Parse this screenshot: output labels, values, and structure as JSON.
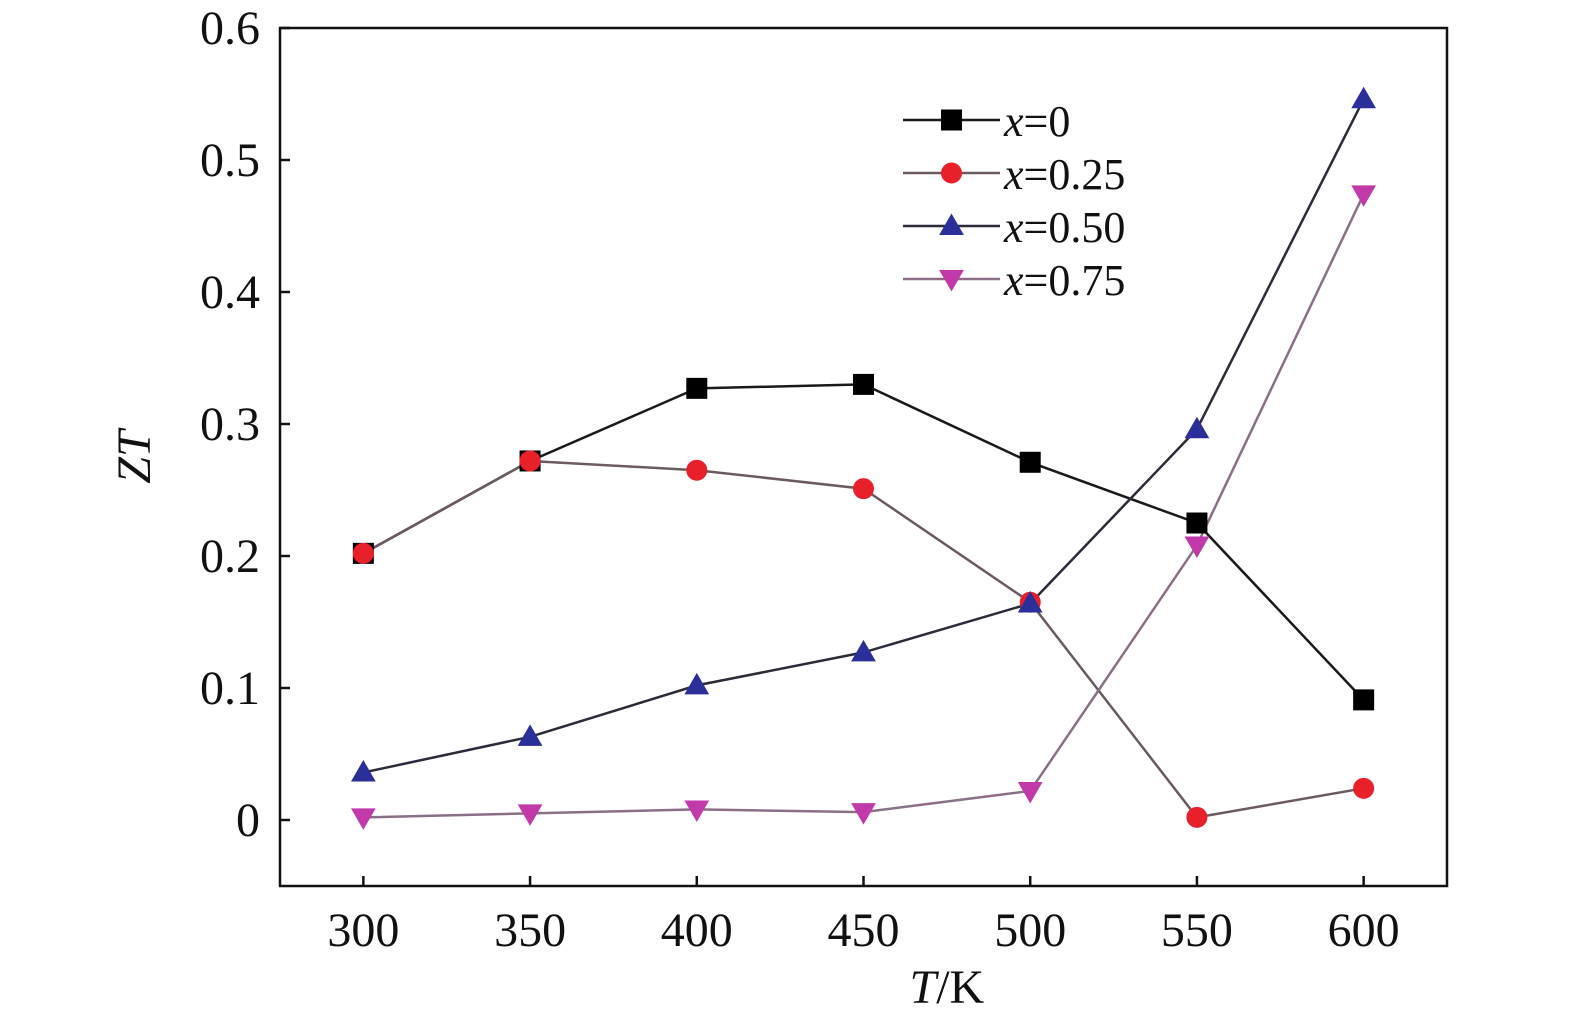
{
  "chart_data": {
    "type": "line",
    "xlabel": "T/K",
    "xlabel_var": "T",
    "xlabel_unit": "/K",
    "ylabel": "ZT",
    "x": [
      300,
      350,
      400,
      450,
      500,
      550,
      600
    ],
    "xlim": [
      275,
      625
    ],
    "ylim": [
      -0.05,
      0.6
    ],
    "xticks": [
      300,
      350,
      400,
      450,
      500,
      550,
      600
    ],
    "yticks": [
      0,
      0.1,
      0.2,
      0.3,
      0.4,
      0.5,
      0.6
    ],
    "grid": false,
    "legend_position": "top-right",
    "series": [
      {
        "name": "x=0",
        "name_var": "x",
        "name_value": "=0",
        "marker": "square",
        "color": "#000000",
        "line_color": "#1a1a1a",
        "values": [
          0.202,
          0.272,
          0.327,
          0.33,
          0.271,
          0.225,
          0.091
        ]
      },
      {
        "name": "x=0.25",
        "name_var": "x",
        "name_value": "=0.25",
        "marker": "circle",
        "color": "#e8202a",
        "line_color": "#6b5a5f",
        "values": [
          0.202,
          0.272,
          0.265,
          0.251,
          0.165,
          0.002,
          0.024
        ]
      },
      {
        "name": "x=0.50",
        "name_var": "x",
        "name_value": "=0.50",
        "marker": "triangle-up",
        "color": "#2a2f9a",
        "line_color": "#2b2b3a",
        "values": [
          0.036,
          0.063,
          0.102,
          0.127,
          0.164,
          0.296,
          0.546
        ]
      },
      {
        "name": "x=0.75",
        "name_var": "x",
        "name_value": "=0.75",
        "marker": "triangle-down",
        "color": "#c23aaa",
        "line_color": "#8a6f86",
        "values": [
          0.002,
          0.005,
          0.008,
          0.006,
          0.022,
          0.208,
          0.474
        ]
      }
    ]
  }
}
